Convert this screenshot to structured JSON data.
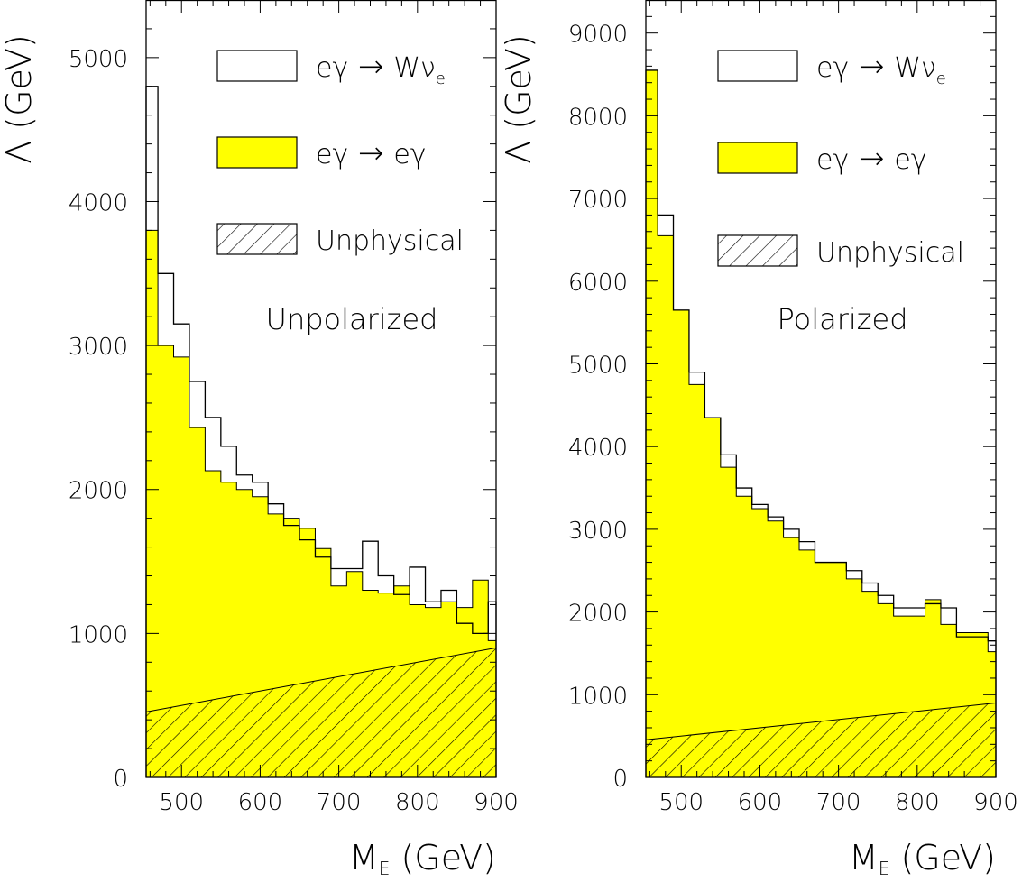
{
  "colors": {
    "fill": "#ffff00",
    "line": "#000000",
    "background": "#ffffff"
  },
  "chart_data": [
    {
      "type": "area",
      "annotation": "Unpolarized",
      "xlabel_main": "M",
      "xlabel_sub": "E",
      "xlabel_unit": " (GeV)",
      "ylabel": "Λ (GeV)",
      "xlim": [
        455,
        900
      ],
      "ylim": [
        0,
        5400
      ],
      "xticks": [
        500,
        600,
        700,
        800,
        900
      ],
      "yticks": [
        0,
        1000,
        2000,
        3000,
        4000,
        5000
      ],
      "bin_edges": [
        455,
        470,
        490,
        510,
        530,
        550,
        570,
        590,
        610,
        630,
        650,
        670,
        690,
        710,
        730,
        750,
        770,
        790,
        810,
        830,
        850,
        870,
        890,
        900
      ],
      "series": [
        {
          "name": "eγ → Wν_e",
          "style": "outline",
          "values": [
            4800,
            3500,
            3150,
            2750,
            2500,
            2300,
            2100,
            2050,
            1900,
            1750,
            1650,
            1530,
            1450,
            1450,
            1640,
            1400,
            1270,
            1460,
            1220,
            1300,
            1070,
            1000,
            1220
          ]
        },
        {
          "name": "eγ → eγ",
          "style": "filled",
          "values": [
            3800,
            3000,
            2920,
            2430,
            2130,
            2050,
            2000,
            1950,
            1830,
            1800,
            1730,
            1590,
            1330,
            1430,
            1300,
            1280,
            1330,
            1200,
            1180,
            1220,
            1180,
            1370,
            950
          ]
        },
        {
          "name": "Unphysical",
          "style": "hatched",
          "x": [
            455,
            900
          ],
          "y": [
            455,
            900
          ]
        }
      ],
      "legend": [
        {
          "label": "eγ",
          "sep": "→",
          "rhs": "Wν",
          "sub": "e",
          "style": "outline"
        },
        {
          "label": "eγ",
          "sep": "→",
          "rhs": "eγ",
          "sub": "",
          "style": "filled"
        },
        {
          "label": "Unphysical",
          "sep": "",
          "rhs": "",
          "sub": "",
          "style": "hatched"
        }
      ],
      "legend_position": "top-right"
    },
    {
      "type": "area",
      "annotation": "Polarized",
      "xlabel_main": "M",
      "xlabel_sub": "E",
      "xlabel_unit": " (GeV)",
      "ylabel": "Λ (GeV)",
      "xlim": [
        455,
        900
      ],
      "ylim": [
        0,
        9400
      ],
      "xticks": [
        500,
        600,
        700,
        800,
        900
      ],
      "yticks": [
        0,
        1000,
        2000,
        3000,
        4000,
        5000,
        6000,
        7000,
        8000,
        9000
      ],
      "bin_edges": [
        455,
        470,
        490,
        510,
        530,
        550,
        570,
        590,
        610,
        630,
        650,
        670,
        690,
        710,
        730,
        750,
        770,
        790,
        810,
        830,
        850,
        870,
        890,
        900
      ],
      "series": [
        {
          "name": "eγ → Wν_e",
          "style": "outline",
          "values": [
            8550,
            6800,
            5650,
            4900,
            4350,
            3900,
            3500,
            3300,
            3150,
            3000,
            2850,
            2600,
            2600,
            2500,
            2350,
            2200,
            2050,
            2050,
            2100,
            2050,
            1700,
            1700,
            1650
          ]
        },
        {
          "name": "eγ → eγ",
          "style": "filled",
          "values": [
            8550,
            6550,
            5650,
            4750,
            4350,
            3750,
            3400,
            3250,
            3100,
            2900,
            2750,
            2600,
            2600,
            2400,
            2250,
            2100,
            1950,
            1950,
            2150,
            1850,
            1750,
            1750,
            1520
          ]
        },
        {
          "name": "Unphysical",
          "style": "hatched",
          "x": [
            455,
            900
          ],
          "y": [
            455,
            900
          ]
        }
      ],
      "legend": [
        {
          "label": "eγ",
          "sep": "→",
          "rhs": "Wν",
          "sub": "e",
          "style": "outline"
        },
        {
          "label": "eγ",
          "sep": "→",
          "rhs": "eγ",
          "sub": "",
          "style": "filled"
        },
        {
          "label": "Unphysical",
          "sep": "",
          "rhs": "",
          "sub": "",
          "style": "hatched"
        }
      ],
      "legend_position": "top-right"
    }
  ]
}
